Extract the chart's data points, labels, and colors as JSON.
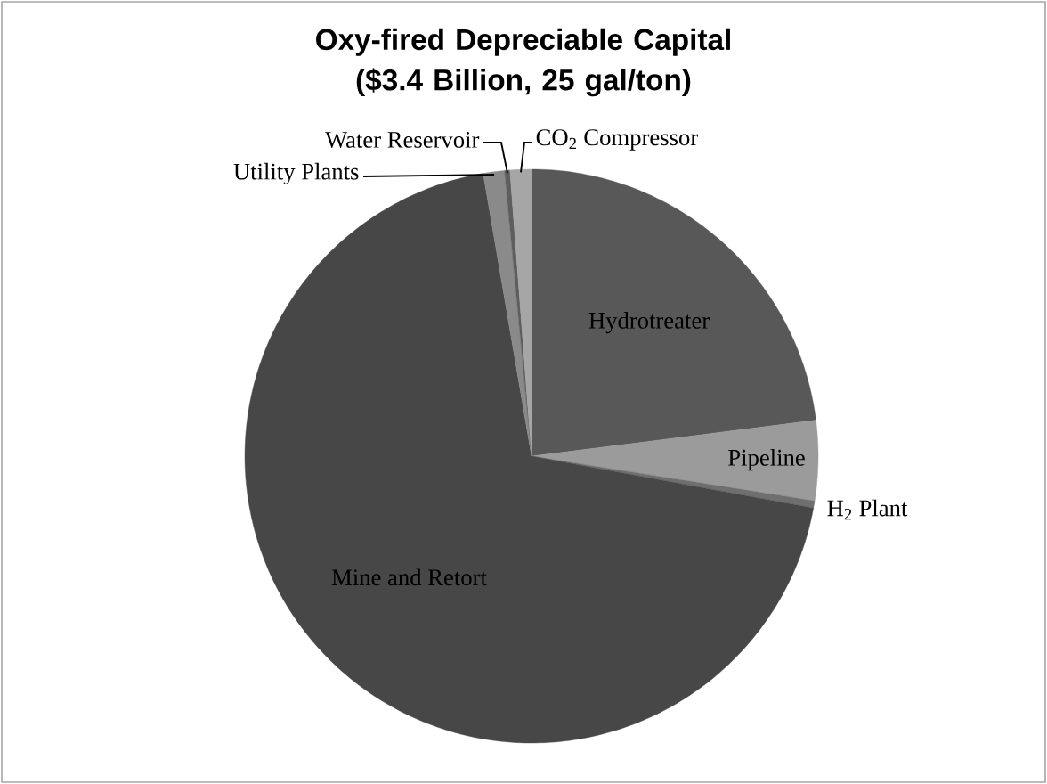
{
  "chart_data": {
    "type": "pie",
    "title": "Oxy-fired Depreciable Capital ($3.4 Billion, 25 gal/ton)",
    "categories": [
      "Hydrotreater",
      "Pipeline",
      "H$_{2}$ Plant",
      "Mine and Retort",
      "Utility Plants",
      "Water Reservoir",
      "CO$_{2}$ Compressor"
    ],
    "values": [
      23,
      4.5,
      0.4,
      69.4,
      1.2,
      0.3,
      1.2
    ],
    "colors": [
      "#585858",
      "#9b9b9b",
      "#6f6f6f",
      "#474747",
      "#8a8a8a",
      "#5e5e5e",
      "#a6a6a6"
    ]
  }
}
